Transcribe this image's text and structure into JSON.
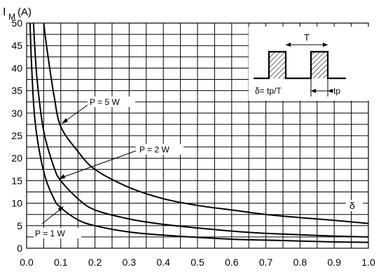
{
  "chart_data": {
    "type": "line",
    "title": "",
    "ylabel_main": "I",
    "ylabel_sub": "M",
    "ylabel_unit": "(A)",
    "xlabel": "δ",
    "xlim": [
      0,
      1
    ],
    "ylim": [
      0,
      50
    ],
    "x_ticks": [
      "0.0",
      "0.1",
      "0.2",
      "0.3",
      "0.4",
      "0.5",
      "0.6",
      "0.7",
      "0.8",
      "0.9",
      "1.0"
    ],
    "y_ticks": [
      "0",
      "5",
      "10",
      "15",
      "20",
      "25",
      "30",
      "35",
      "40",
      "45",
      "50"
    ],
    "grid": true,
    "series": [
      {
        "name": "P = 5 W",
        "x": [
          0.05,
          0.06,
          0.08,
          0.1,
          0.15,
          0.2,
          0.3,
          0.4,
          0.5,
          0.6,
          0.7,
          0.8,
          0.9,
          1.0
        ],
        "y": [
          50,
          44,
          34,
          27,
          21.5,
          17.5,
          13.5,
          11,
          9.5,
          8.5,
          7.5,
          6.8,
          6.2,
          5.5
        ]
      },
      {
        "name": "P = 2 W",
        "x": [
          0.02,
          0.03,
          0.05,
          0.08,
          0.1,
          0.15,
          0.2,
          0.3,
          0.4,
          0.5,
          0.6,
          0.7,
          0.8,
          0.9,
          1.0
        ],
        "y": [
          50,
          38,
          26,
          18,
          15,
          11,
          8.5,
          6.5,
          5.3,
          4.5,
          3.8,
          3.3,
          3,
          2.7,
          2.5
        ]
      },
      {
        "name": "P = 1 W",
        "x": [
          0.01,
          0.015,
          0.025,
          0.05,
          0.08,
          0.1,
          0.15,
          0.2,
          0.3,
          0.4,
          0.5,
          0.6,
          0.7,
          0.8,
          0.9,
          1.0
        ],
        "y": [
          50,
          40,
          28,
          17,
          11,
          9,
          6.3,
          5,
          3.6,
          2.9,
          2.4,
          2,
          1.8,
          1.6,
          1.4,
          1.3
        ]
      }
    ],
    "inset": {
      "period_label": "T",
      "duty_label": "δ= tp/T",
      "tp_label": "tp"
    }
  }
}
